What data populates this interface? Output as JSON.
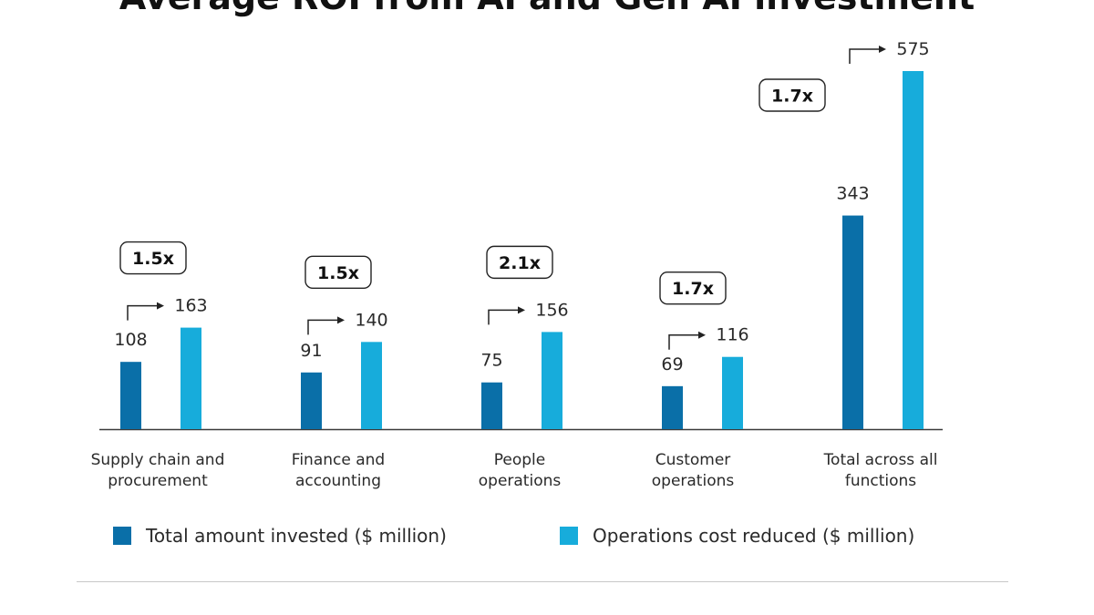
{
  "chart_data": {
    "type": "bar",
    "title": "Average ROI from AI and Gen AI investment",
    "categories": [
      [
        "Supply chain and",
        "procurement"
      ],
      [
        "Finance and",
        "accounting"
      ],
      [
        "People",
        "operations"
      ],
      [
        "Customer",
        "operations"
      ],
      [
        "Total across all",
        "functions"
      ]
    ],
    "series": [
      {
        "name": "Total amount invested ($ million)",
        "color": "#0A6FA8",
        "values": [
          108,
          91,
          75,
          69,
          343
        ]
      },
      {
        "name": "Operations cost reduced ($ million)",
        "color": "#17ACDB",
        "values": [
          163,
          140,
          156,
          116,
          575
        ]
      }
    ],
    "multipliers": [
      "1.5x",
      "1.5x",
      "2.1x",
      "1.7x",
      "1.7x"
    ],
    "xlabel": "",
    "ylabel": "",
    "ylim": [
      0,
      575
    ],
    "grid": false,
    "legend": "bottom"
  }
}
